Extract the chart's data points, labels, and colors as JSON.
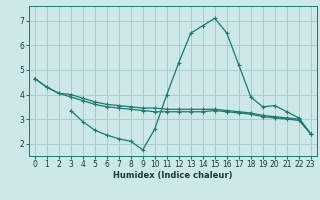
{
  "xlabel": "Humidex (Indice chaleur)",
  "bg_color": "#cce8e8",
  "grid_color": "#aacccc",
  "line_color": "#1a7a6e",
  "xlim": [
    -0.5,
    23.5
  ],
  "ylim": [
    1.5,
    7.6
  ],
  "yticks": [
    2,
    3,
    4,
    5,
    6,
    7
  ],
  "xticks": [
    0,
    1,
    2,
    3,
    4,
    5,
    6,
    7,
    8,
    9,
    10,
    11,
    12,
    13,
    14,
    15,
    16,
    17,
    18,
    19,
    20,
    21,
    22,
    23
  ],
  "curve1_x": [
    0,
    1,
    2,
    3,
    4,
    5,
    6,
    7,
    8,
    9,
    10,
    11,
    12,
    13,
    14,
    15,
    16,
    17,
    18,
    19,
    20,
    21,
    22,
    23
  ],
  "curve1_y": [
    4.65,
    4.3,
    4.05,
    4.0,
    3.85,
    3.7,
    3.6,
    3.55,
    3.5,
    3.45,
    3.45,
    3.4,
    3.4,
    3.4,
    3.4,
    3.4,
    3.35,
    3.3,
    3.25,
    3.15,
    3.1,
    3.05,
    3.0,
    2.4
  ],
  "curve2_x": [
    3,
    4,
    5,
    6,
    7,
    8,
    9,
    10,
    11,
    12,
    13,
    14,
    15,
    16,
    17,
    18,
    19,
    20,
    21,
    22,
    23
  ],
  "curve2_y": [
    3.35,
    2.9,
    2.55,
    2.35,
    2.2,
    2.1,
    1.75,
    2.6,
    4.0,
    5.3,
    6.5,
    6.8,
    7.1,
    6.5,
    5.2,
    3.9,
    3.5,
    3.55,
    3.3,
    3.05,
    2.4
  ],
  "curve3_x": [
    0,
    1,
    2,
    3,
    4,
    5,
    6,
    7,
    8,
    9,
    10,
    11,
    12,
    13,
    14,
    15,
    16,
    17,
    18,
    19,
    20,
    21,
    22,
    23
  ],
  "curve3_y": [
    4.65,
    4.3,
    4.05,
    3.9,
    3.75,
    3.6,
    3.5,
    3.45,
    3.4,
    3.35,
    3.3,
    3.3,
    3.3,
    3.3,
    3.3,
    3.35,
    3.3,
    3.25,
    3.2,
    3.1,
    3.05,
    3.0,
    2.95,
    2.4
  ]
}
